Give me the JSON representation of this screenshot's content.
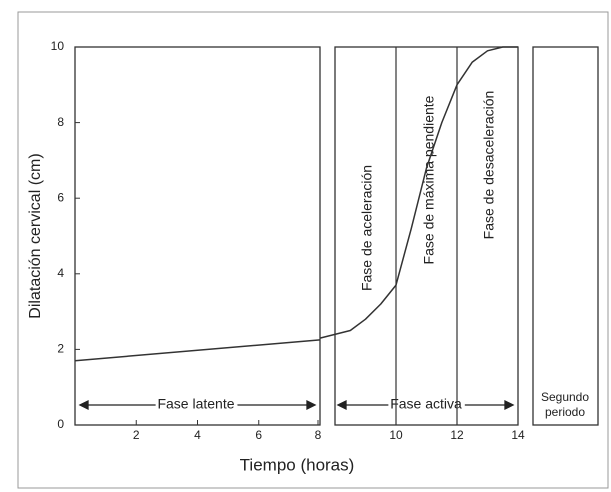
{
  "chart_data": {
    "type": "line",
    "xlabel": "Tiempo (horas)",
    "ylabel": "Dilatación cervical (cm)",
    "xlim": [
      0,
      14
    ],
    "ylim": [
      0,
      10
    ],
    "xticks": [
      2,
      4,
      6,
      8,
      10,
      12,
      14
    ],
    "yticks": [
      0,
      2,
      4,
      6,
      8,
      10
    ],
    "grid": false,
    "series": [
      {
        "color": "#333333",
        "x": [
          0,
          8
        ],
        "values": [
          1.7,
          2.25
        ]
      },
      {
        "color": "#333333",
        "x": [
          8,
          8.5,
          9,
          9.5,
          10,
          10.5,
          11,
          11.5,
          12,
          12.5,
          13,
          13.5,
          14
        ],
        "values": [
          2.3,
          2.5,
          2.8,
          3.2,
          3.7,
          5.2,
          6.8,
          8.0,
          9.0,
          9.6,
          9.9,
          10,
          10
        ]
      }
    ],
    "phase_lines": [
      10,
      12
    ],
    "annotations": [
      "Fase latente",
      "Fase activa",
      "Segundo",
      "periodo",
      "Fase de aceleración",
      "Fase de máxima pendiente",
      "Fase de desaceleración"
    ]
  }
}
